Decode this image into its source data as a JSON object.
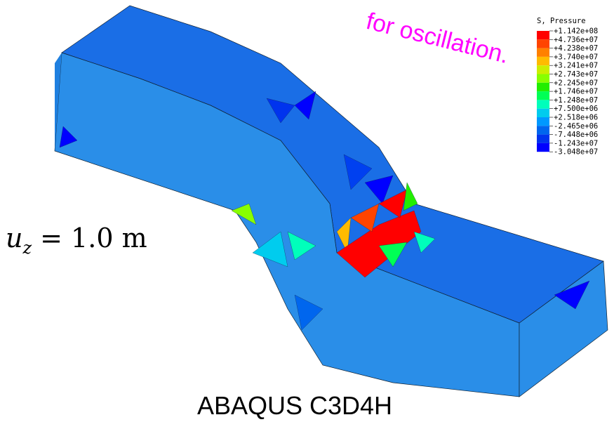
{
  "annotation": "for oscillation.",
  "displacement_label": {
    "symbol": "u",
    "subscript": "z",
    "value": "= 1.0 m"
  },
  "caption": "ABAQUS C3D4H",
  "legend": {
    "title": "S, Pressure",
    "labels": [
      "+1.142e+08",
      "+4.736e+07",
      "+4.238e+07",
      "+3.740e+07",
      "+3.241e+07",
      "+2.743e+07",
      "+2.245e+07",
      "+1.746e+07",
      "+1.248e+07",
      "+7.500e+06",
      "+2.518e+06",
      "-2.465e+06",
      "-7.448e+06",
      "-1.243e+07",
      "-3.048e+07"
    ],
    "colors": [
      "#ff0000",
      "#ff4400",
      "#ff8000",
      "#ffbb00",
      "#ccee00",
      "#88ff00",
      "#22ee00",
      "#00ff55",
      "#00ffbb",
      "#00ccee",
      "#0099ff",
      "#0066ee",
      "#0033ee",
      "#0000ff"
    ]
  }
}
